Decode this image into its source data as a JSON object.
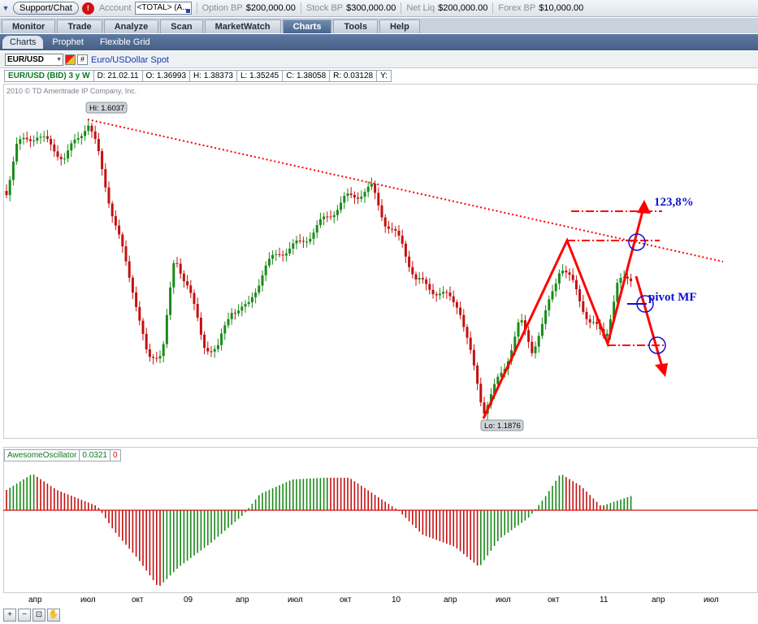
{
  "account_bar": {
    "support_label": "Support/Chat",
    "alert_label": "!",
    "account_label": "Account",
    "account_value": "<TOTAL> (A...",
    "option_bp_label": "Option BP",
    "option_bp_value": "$200,000.00",
    "stock_bp_label": "Stock BP",
    "stock_bp_value": "$300,000.00",
    "net_liq_label": "Net Liq",
    "net_liq_value": "$200,000.00",
    "forex_bp_label": "Forex BP",
    "forex_bp_value": "$10,000.00"
  },
  "main_tabs": [
    "Monitor",
    "Trade",
    "Analyze",
    "Scan",
    "MarketWatch",
    "Charts",
    "Tools",
    "Help"
  ],
  "active_main_tab": "Charts",
  "sub_tabs": [
    "Charts",
    "Prophet",
    "Flexible Grid"
  ],
  "active_sub_tab": "Charts",
  "symbol_bar": {
    "symbol": "EUR/USD",
    "description": "Euro/USDollar Spot",
    "hash_label": "#"
  },
  "ohlc": {
    "series": "EUR/USD (BID) 3 y W",
    "date": "D: 21.02.11",
    "open": "O: 1.36993",
    "high": "H: 1.38373",
    "low": "L: 1.35245",
    "close": "C: 1.38058",
    "range": "R: 0.03128",
    "y": "Y:"
  },
  "copyright": "2010 © TD Ameritrade IP Company, Inc.",
  "annotations": {
    "hi_label": "Hi: 1.6037",
    "lo_label": "Lo: 1.1876",
    "fib_label": "123,8%",
    "pivot_label": "pivot MF"
  },
  "oscillator": {
    "name": "AwesomeOscillator",
    "value": "0.0321",
    "zero": "0"
  },
  "x_axis_labels": [
    "апр",
    "июл",
    "окт",
    "09",
    "апр",
    "июл",
    "окт",
    "10",
    "апр",
    "июл",
    "окт",
    "11",
    "апр",
    "июл"
  ],
  "colors": {
    "up": "#1a8a1a",
    "down": "#c41010",
    "annotation": "#ff0000",
    "marker": "#1010d0",
    "tab_active": "#4a6690"
  },
  "zoom_tools": [
    "zoom-in-icon",
    "zoom-out-icon",
    "zoom-fit-icon",
    "pan-hand-icon"
  ]
}
